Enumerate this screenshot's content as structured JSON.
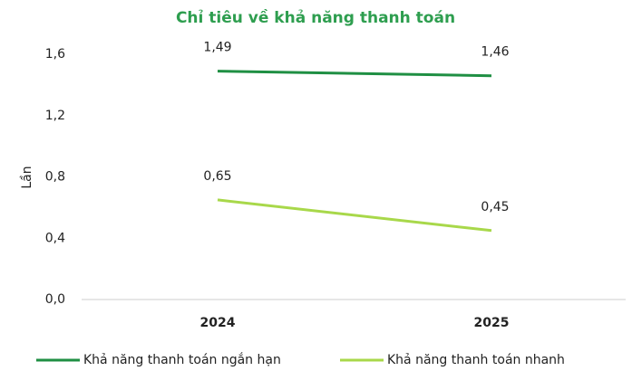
{
  "chart_data": {
    "type": "line",
    "title": "Chỉ tiêu về khả năng thanh toán",
    "y_label": "Lần",
    "categories": [
      "2024",
      "2025"
    ],
    "series": [
      {
        "name": "Khả năng thanh toán ngắn hạn",
        "color": "#1f8f43",
        "values": [
          1.49,
          1.46
        ],
        "value_labels": [
          "1,49",
          "1,46"
        ]
      },
      {
        "name": "Khả năng thanh toán nhanh",
        "color": "#a8d84a",
        "values": [
          0.65,
          0.45
        ],
        "value_labels": [
          "0,65",
          "0,45"
        ]
      }
    ],
    "ylim": [
      0,
      1.6
    ],
    "yticks": [
      {
        "value": 0,
        "label": "0,0"
      },
      {
        "value": 0.4,
        "label": "0,4"
      },
      {
        "value": 0.8,
        "label": "0,8"
      },
      {
        "value": 1.2,
        "label": "1,2"
      },
      {
        "value": 1.6,
        "label": "1,6"
      }
    ],
    "legend": "bottom"
  }
}
